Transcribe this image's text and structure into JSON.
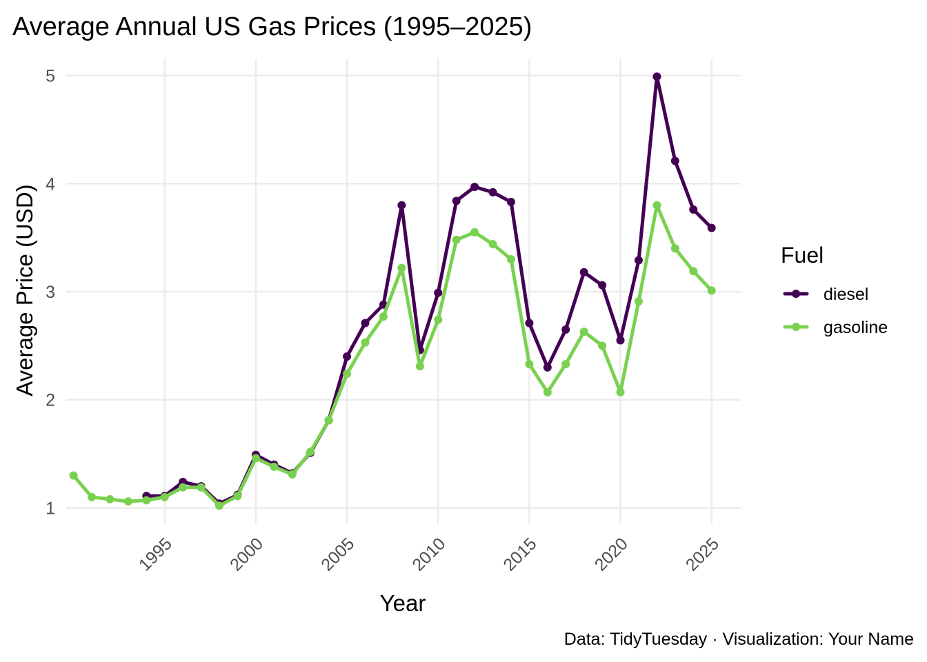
{
  "chart_data": {
    "type": "line",
    "title": "Average Annual US Gas Prices (1995–2025)",
    "xlabel": "Year",
    "ylabel": "Average Price (USD)",
    "caption": "Data: TidyTuesday · Visualization: Your Name",
    "xlim": [
      1989.6,
      2026.6
    ],
    "ylim": [
      0.85,
      5.15
    ],
    "x_ticks": [
      1995,
      2000,
      2005,
      2010,
      2015,
      2020,
      2025
    ],
    "x_tick_labels": [
      "1995",
      "2000",
      "2005",
      "2010",
      "2015",
      "2020",
      "2025"
    ],
    "y_ticks": [
      1,
      2,
      3,
      4,
      5
    ],
    "y_tick_labels": [
      "1",
      "2",
      "3",
      "4",
      "5"
    ],
    "grid": true,
    "legend": {
      "title": "Fuel",
      "position": "right",
      "entries": [
        "diesel",
        "gasoline"
      ]
    },
    "series": [
      {
        "name": "diesel",
        "color": "#440154",
        "x": [
          1994,
          1995,
          1996,
          1997,
          1998,
          1999,
          2000,
          2001,
          2002,
          2003,
          2004,
          2005,
          2006,
          2007,
          2008,
          2009,
          2010,
          2011,
          2012,
          2013,
          2014,
          2015,
          2016,
          2017,
          2018,
          2019,
          2020,
          2021,
          2022,
          2023,
          2024,
          2025
        ],
        "values": [
          1.11,
          1.11,
          1.24,
          1.2,
          1.04,
          1.12,
          1.49,
          1.4,
          1.32,
          1.51,
          1.81,
          2.4,
          2.71,
          2.88,
          3.8,
          2.46,
          2.99,
          3.84,
          3.97,
          3.92,
          3.83,
          2.71,
          2.3,
          2.65,
          3.18,
          3.06,
          2.55,
          3.29,
          4.99,
          4.21,
          3.76,
          3.59
        ]
      },
      {
        "name": "gasoline",
        "color": "#7ad151",
        "x": [
          1990,
          1991,
          1992,
          1993,
          1994,
          1995,
          1996,
          1997,
          1998,
          1999,
          2000,
          2001,
          2002,
          2003,
          2004,
          2005,
          2006,
          2007,
          2008,
          2009,
          2010,
          2011,
          2012,
          2013,
          2014,
          2015,
          2016,
          2017,
          2018,
          2019,
          2020,
          2021,
          2022,
          2023,
          2024,
          2025
        ],
        "values": [
          1.3,
          1.1,
          1.08,
          1.06,
          1.07,
          1.1,
          1.19,
          1.19,
          1.02,
          1.11,
          1.46,
          1.38,
          1.31,
          1.52,
          1.81,
          2.24,
          2.53,
          2.77,
          3.22,
          2.31,
          2.74,
          3.48,
          3.55,
          3.44,
          3.3,
          2.33,
          2.07,
          2.33,
          2.63,
          2.5,
          2.07,
          2.91,
          3.8,
          3.4,
          3.19,
          3.01
        ]
      }
    ]
  }
}
